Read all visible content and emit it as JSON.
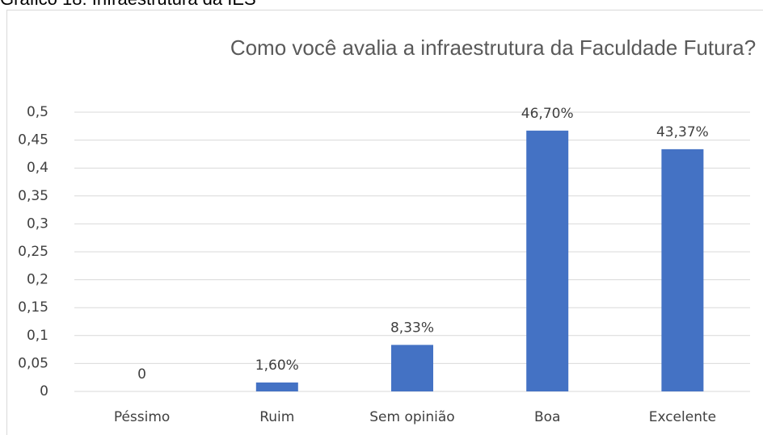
{
  "caption": "Gráfico 18: Infraestrutura da IES",
  "chart_data": {
    "type": "bar",
    "title": "Como você avalia a infraestrutura da Faculdade Futura?",
    "categories": [
      "Péssimo",
      "Ruim",
      "Sem opinião",
      "Boa",
      "Excelente"
    ],
    "values": [
      0,
      0.016,
      0.0833,
      0.467,
      0.4337
    ],
    "value_labels": [
      "0",
      "1,60%",
      "8,33%",
      "46,70%",
      "43,37%"
    ],
    "color": "#4472c4",
    "ylim": [
      0,
      0.5
    ],
    "yticks": [
      0,
      {
        "value": 0.05,
        "label": "0,05"
      },
      {
        "value": 0.1,
        "label": "0,1"
      },
      {
        "value": 0.15,
        "label": "0,15"
      },
      {
        "value": 0.2,
        "label": "0,2"
      },
      {
        "value": 0.25,
        "label": "0,25"
      },
      {
        "value": 0.3,
        "label": "0,3"
      },
      {
        "value": 0.35,
        "label": "0,35"
      },
      {
        "value": 0.4,
        "label": "0,4"
      },
      {
        "value": 0.45,
        "label": "0,45"
      },
      {
        "value": 0.5,
        "label": "0,5"
      }
    ],
    "grid": true
  }
}
